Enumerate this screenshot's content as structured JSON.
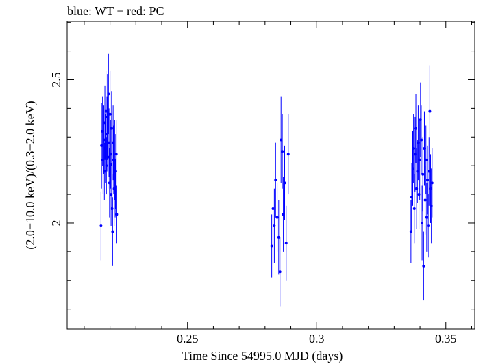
{
  "chart_data": {
    "type": "scatter",
    "title": "blue: WT − red: PC",
    "xlabel": "Time Since 54995.0 MJD (days)",
    "ylabel": "(2.0−10.0 keV)/(0.3−2.0 keV)",
    "xlim": [
      0.2034,
      0.3612
    ],
    "ylim": [
      1.63,
      2.704
    ],
    "x_ticks": [
      {
        "value": 0.25,
        "label": "0.25"
      },
      {
        "value": 0.3,
        "label": "0.3"
      },
      {
        "value": 0.35,
        "label": "0.35"
      }
    ],
    "y_ticks": [
      {
        "value": 2.0,
        "label": "2"
      },
      {
        "value": 2.5,
        "label": "2.5"
      }
    ],
    "grid": false,
    "series": [
      {
        "name": "WT",
        "color": "#0000ff",
        "points": [
          {
            "x": 0.2165,
            "y": 1.99,
            "err": 0.12
          },
          {
            "x": 0.2167,
            "y": 2.27,
            "err": 0.15
          },
          {
            "x": 0.2171,
            "y": 2.32,
            "err": 0.12
          },
          {
            "x": 0.2173,
            "y": 2.22,
            "err": 0.12
          },
          {
            "x": 0.2176,
            "y": 2.29,
            "err": 0.12
          },
          {
            "x": 0.2178,
            "y": 2.18,
            "err": 0.1
          },
          {
            "x": 0.218,
            "y": 2.35,
            "err": 0.13
          },
          {
            "x": 0.2182,
            "y": 2.26,
            "err": 0.12
          },
          {
            "x": 0.2184,
            "y": 2.39,
            "err": 0.14
          },
          {
            "x": 0.2186,
            "y": 2.2,
            "err": 0.1
          },
          {
            "x": 0.2188,
            "y": 2.31,
            "err": 0.13
          },
          {
            "x": 0.219,
            "y": 2.37,
            "err": 0.15
          },
          {
            "x": 0.2192,
            "y": 2.23,
            "err": 0.11
          },
          {
            "x": 0.2194,
            "y": 2.45,
            "err": 0.14
          },
          {
            "x": 0.2196,
            "y": 2.28,
            "err": 0.12
          },
          {
            "x": 0.2198,
            "y": 2.14,
            "err": 0.12
          },
          {
            "x": 0.22,
            "y": 2.38,
            "err": 0.15
          },
          {
            "x": 0.2202,
            "y": 2.24,
            "err": 0.12
          },
          {
            "x": 0.2204,
            "y": 2.1,
            "err": 0.11
          },
          {
            "x": 0.2206,
            "y": 2.33,
            "err": 0.13
          },
          {
            "x": 0.2208,
            "y": 2.05,
            "err": 0.12
          },
          {
            "x": 0.221,
            "y": 1.97,
            "err": 0.12
          },
          {
            "x": 0.2212,
            "y": 2.28,
            "err": 0.13
          },
          {
            "x": 0.2214,
            "y": 2.22,
            "err": 0.12
          },
          {
            "x": 0.2216,
            "y": 2.12,
            "err": 0.13
          },
          {
            "x": 0.2218,
            "y": 2.22,
            "err": 0.14
          },
          {
            "x": 0.222,
            "y": 2.12,
            "err": 0.1
          },
          {
            "x": 0.2222,
            "y": 2.18,
            "err": 0.13
          },
          {
            "x": 0.2224,
            "y": 2.24,
            "err": 0.12
          },
          {
            "x": 0.2226,
            "y": 2.03,
            "err": 0.1
          }
        ]
      },
      {
        "name": "WT",
        "color": "#0000ff",
        "points": [
          {
            "x": 0.2826,
            "y": 1.92,
            "err": 0.11
          },
          {
            "x": 0.2831,
            "y": 2.05,
            "err": 0.13
          },
          {
            "x": 0.2836,
            "y": 1.99,
            "err": 0.13
          },
          {
            "x": 0.2841,
            "y": 2.15,
            "err": 0.13
          },
          {
            "x": 0.2847,
            "y": 2.02,
            "err": 0.12
          },
          {
            "x": 0.2853,
            "y": 1.95,
            "err": 0.13
          },
          {
            "x": 0.2858,
            "y": 1.83,
            "err": 0.12
          },
          {
            "x": 0.2862,
            "y": 2.29,
            "err": 0.15
          },
          {
            "x": 0.2867,
            "y": 2.25,
            "err": 0.13
          },
          {
            "x": 0.2871,
            "y": 2.03,
            "err": 0.13
          },
          {
            "x": 0.2876,
            "y": 2.14,
            "err": 0.13
          },
          {
            "x": 0.2882,
            "y": 1.93,
            "err": 0.13
          },
          {
            "x": 0.289,
            "y": 2.24,
            "err": 0.14
          }
        ]
      },
      {
        "name": "WT",
        "color": "#0000ff",
        "points": [
          {
            "x": 0.3365,
            "y": 1.97,
            "err": 0.11
          },
          {
            "x": 0.3368,
            "y": 2.09,
            "err": 0.12
          },
          {
            "x": 0.3372,
            "y": 2.19,
            "err": 0.13
          },
          {
            "x": 0.3375,
            "y": 2.26,
            "err": 0.12
          },
          {
            "x": 0.3378,
            "y": 2.05,
            "err": 0.12
          },
          {
            "x": 0.3381,
            "y": 2.24,
            "err": 0.13
          },
          {
            "x": 0.3384,
            "y": 2.33,
            "err": 0.12
          },
          {
            "x": 0.3387,
            "y": 2.12,
            "err": 0.14
          },
          {
            "x": 0.339,
            "y": 2.18,
            "err": 0.11
          },
          {
            "x": 0.3393,
            "y": 2.28,
            "err": 0.13
          },
          {
            "x": 0.3396,
            "y": 2.1,
            "err": 0.12
          },
          {
            "x": 0.3399,
            "y": 2.22,
            "err": 0.14
          },
          {
            "x": 0.3402,
            "y": 2.36,
            "err": 0.13
          },
          {
            "x": 0.3405,
            "y": 2.29,
            "err": 0.12
          },
          {
            "x": 0.3408,
            "y": 2.0,
            "err": 0.13
          },
          {
            "x": 0.3411,
            "y": 2.17,
            "err": 0.13
          },
          {
            "x": 0.3414,
            "y": 1.85,
            "err": 0.12
          },
          {
            "x": 0.3417,
            "y": 2.26,
            "err": 0.13
          },
          {
            "x": 0.342,
            "y": 2.08,
            "err": 0.12
          },
          {
            "x": 0.3423,
            "y": 2.22,
            "err": 0.12
          },
          {
            "x": 0.3426,
            "y": 2.02,
            "err": 0.12
          },
          {
            "x": 0.3429,
            "y": 2.15,
            "err": 0.12
          },
          {
            "x": 0.3432,
            "y": 1.99,
            "err": 0.11
          },
          {
            "x": 0.3435,
            "y": 2.18,
            "err": 0.12
          },
          {
            "x": 0.3438,
            "y": 2.39,
            "err": 0.16
          },
          {
            "x": 0.3441,
            "y": 2.12,
            "err": 0.12
          },
          {
            "x": 0.3444,
            "y": 2.06,
            "err": 0.13
          },
          {
            "x": 0.3447,
            "y": 2.14,
            "err": 0.12
          }
        ]
      }
    ]
  }
}
